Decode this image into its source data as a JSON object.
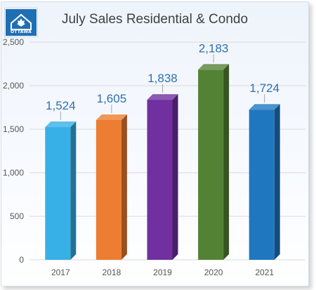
{
  "logo": {
    "text": "OTTAWA"
  },
  "chart_data": {
    "type": "bar",
    "title": "July Sales Residential & Condo",
    "categories": [
      "2017",
      "2018",
      "2019",
      "2020",
      "2021"
    ],
    "values": [
      1524,
      1605,
      1838,
      2183,
      1724
    ],
    "value_labels": [
      "1,524",
      "1,605",
      "1,838",
      "2,183",
      "1,724"
    ],
    "colors": [
      "#36b0e6",
      "#ed7d31",
      "#7030a0",
      "#548235",
      "#1f77c0"
    ],
    "ylim": [
      0,
      2500
    ],
    "yticks": [
      0,
      500,
      1000,
      1500,
      2000,
      2500
    ],
    "ytick_labels": [
      "0",
      "500",
      "1,000",
      "1,500",
      "2,000",
      "2,500"
    ],
    "grid": true,
    "xlabel": "",
    "ylabel": ""
  }
}
